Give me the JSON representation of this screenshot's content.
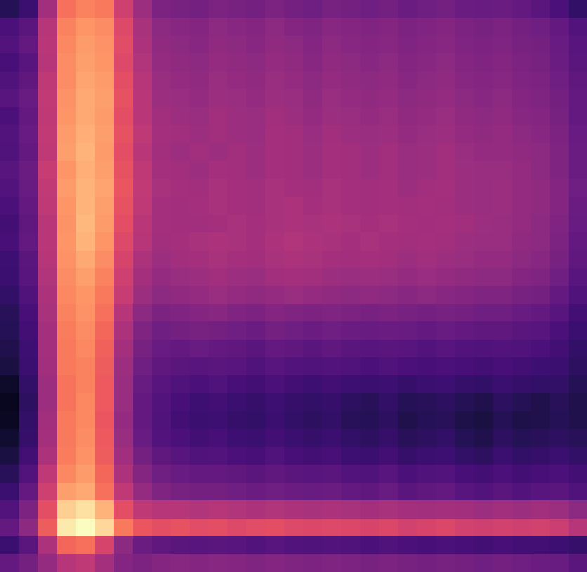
{
  "chart_data": {
    "type": "heatmap",
    "color": "magma",
    "color_range": [
      0,
      100
    ],
    "tick_labels": false,
    "cells": [
      [
        15,
        20,
        45,
        70,
        74,
        72,
        56,
        44,
        36,
        35,
        34,
        36,
        35,
        34,
        36,
        34,
        33,
        35,
        34,
        33,
        34,
        32,
        33,
        34,
        32,
        31,
        32,
        30,
        28,
        24,
        18
      ],
      [
        24,
        28,
        50,
        74,
        78,
        76,
        60,
        47,
        40,
        39,
        38,
        40,
        39,
        38,
        40,
        38,
        37,
        39,
        38,
        37,
        38,
        36,
        37,
        38,
        36,
        35,
        36,
        34,
        33,
        30,
        26
      ],
      [
        26,
        30,
        51,
        75,
        79,
        77,
        61,
        48,
        41,
        40,
        39,
        41,
        40,
        39,
        41,
        40,
        38,
        40,
        39,
        38,
        39,
        37,
        38,
        39,
        37,
        36,
        37,
        35,
        34,
        31,
        27
      ],
      [
        23,
        27,
        50,
        76,
        80,
        78,
        60,
        49,
        42,
        41,
        40,
        42,
        41,
        40,
        42,
        41,
        39,
        41,
        40,
        39,
        40,
        38,
        39,
        40,
        38,
        37,
        38,
        36,
        35,
        32,
        28
      ],
      [
        25,
        29,
        52,
        76,
        81,
        79,
        62,
        50,
        43,
        42,
        41,
        43,
        42,
        41,
        43,
        42,
        40,
        42,
        41,
        40,
        41,
        39,
        40,
        41,
        39,
        38,
        39,
        37,
        36,
        33,
        29
      ],
      [
        27,
        31,
        53,
        77,
        82,
        80,
        63,
        51,
        44,
        43,
        42,
        44,
        43,
        42,
        44,
        43,
        41,
        43,
        42,
        41,
        42,
        40,
        41,
        42,
        40,
        39,
        40,
        38,
        37,
        34,
        30
      ],
      [
        24,
        30,
        52,
        78,
        82,
        79,
        62,
        51,
        45,
        44,
        43,
        45,
        44,
        43,
        45,
        44,
        42,
        44,
        43,
        42,
        43,
        41,
        42,
        43,
        41,
        40,
        41,
        39,
        38,
        35,
        30
      ],
      [
        26,
        31,
        53,
        79,
        83,
        80,
        63,
        52,
        46,
        45,
        44,
        45,
        44,
        43,
        46,
        45,
        43,
        45,
        44,
        43,
        44,
        42,
        43,
        44,
        42,
        41,
        42,
        40,
        39,
        36,
        31
      ],
      [
        25,
        30,
        52,
        80,
        84,
        79,
        62,
        51,
        45,
        44,
        45,
        44,
        45,
        44,
        46,
        45,
        44,
        46,
        45,
        44,
        45,
        43,
        44,
        45,
        43,
        42,
        42,
        41,
        40,
        37,
        32
      ],
      [
        27,
        32,
        54,
        78,
        83,
        80,
        63,
        52,
        46,
        45,
        44,
        46,
        45,
        44,
        46,
        45,
        44,
        46,
        45,
        44,
        45,
        43,
        44,
        45,
        44,
        43,
        43,
        42,
        40,
        37,
        32
      ],
      [
        26,
        31,
        53,
        79,
        84,
        81,
        64,
        53,
        47,
        46,
        45,
        47,
        46,
        45,
        47,
        46,
        45,
        47,
        46,
        45,
        46,
        44,
        45,
        46,
        44,
        43,
        44,
        42,
        41,
        38,
        33
      ],
      [
        24,
        30,
        52,
        78,
        84,
        80,
        63,
        52,
        46,
        45,
        46,
        47,
        46,
        45,
        47,
        48,
        46,
        47,
        46,
        45,
        46,
        45,
        46,
        45,
        44,
        43,
        44,
        42,
        41,
        38,
        32
      ],
      [
        22,
        29,
        51,
        77,
        85,
        79,
        62,
        51,
        46,
        45,
        45,
        46,
        47,
        46,
        47,
        48,
        47,
        48,
        47,
        46,
        47,
        46,
        45,
        46,
        45,
        44,
        43,
        42,
        40,
        37,
        31
      ],
      [
        23,
        30,
        51,
        78,
        84,
        78,
        60,
        50,
        45,
        46,
        47,
        48,
        47,
        46,
        48,
        49,
        48,
        47,
        46,
        47,
        46,
        45,
        46,
        45,
        44,
        43,
        43,
        41,
        40,
        36,
        30
      ],
      [
        21,
        28,
        50,
        77,
        82,
        76,
        58,
        48,
        44,
        45,
        46,
        47,
        46,
        45,
        47,
        48,
        47,
        46,
        45,
        46,
        45,
        44,
        45,
        44,
        43,
        42,
        42,
        40,
        39,
        35,
        29
      ],
      [
        20,
        27,
        49,
        76,
        80,
        74,
        56,
        46,
        42,
        43,
        44,
        45,
        44,
        43,
        45,
        46,
        45,
        44,
        43,
        44,
        43,
        42,
        43,
        42,
        41,
        40,
        40,
        38,
        37,
        33,
        27
      ],
      [
        18,
        25,
        48,
        75,
        78,
        72,
        54,
        44,
        40,
        41,
        42,
        43,
        42,
        41,
        42,
        43,
        42,
        41,
        40,
        41,
        40,
        39,
        40,
        39,
        38,
        37,
        37,
        35,
        34,
        30,
        25
      ],
      [
        16,
        23,
        47,
        74,
        77,
        70,
        50,
        40,
        36,
        37,
        38,
        39,
        37,
        36,
        38,
        37,
        36,
        37,
        36,
        35,
        36,
        35,
        34,
        35,
        34,
        33,
        33,
        31,
        30,
        27,
        22
      ],
      [
        15,
        22,
        46,
        73,
        76,
        68,
        48,
        37,
        33,
        34,
        35,
        34,
        33,
        32,
        34,
        33,
        32,
        33,
        32,
        31,
        32,
        31,
        30,
        31,
        30,
        29,
        29,
        28,
        27,
        24,
        20
      ],
      [
        14,
        21,
        46,
        72,
        75,
        67,
        46,
        35,
        31,
        30,
        31,
        30,
        29,
        28,
        30,
        29,
        28,
        29,
        28,
        27,
        28,
        27,
        26,
        27,
        26,
        25,
        26,
        25,
        24,
        22,
        18
      ],
      [
        12,
        20,
        45,
        72,
        74,
        66,
        44,
        33,
        29,
        28,
        27,
        28,
        27,
        25,
        27,
        26,
        25,
        26,
        25,
        24,
        25,
        24,
        23,
        24,
        23,
        22,
        23,
        22,
        21,
        20,
        17
      ],
      [
        8,
        18,
        44,
        71,
        74,
        65,
        43,
        31,
        27,
        25,
        24,
        25,
        23,
        22,
        24,
        22,
        21,
        22,
        21,
        20,
        21,
        19,
        20,
        21,
        19,
        18,
        20,
        19,
        18,
        18,
        15
      ],
      [
        6,
        17,
        44,
        71,
        75,
        65,
        43,
        30,
        26,
        23,
        21,
        22,
        20,
        19,
        21,
        19,
        18,
        19,
        17,
        16,
        18,
        15,
        16,
        17,
        15,
        14,
        17,
        15,
        14,
        16,
        14
      ],
      [
        7,
        18,
        45,
        72,
        75,
        64,
        42,
        30,
        25,
        22,
        20,
        21,
        19,
        18,
        20,
        18,
        17,
        18,
        16,
        15,
        17,
        14,
        15,
        16,
        13,
        12,
        15,
        13,
        14,
        15,
        14
      ],
      [
        9,
        19,
        46,
        72,
        76,
        65,
        43,
        31,
        26,
        24,
        22,
        23,
        21,
        20,
        22,
        20,
        19,
        20,
        18,
        17,
        19,
        16,
        17,
        18,
        15,
        14,
        17,
        15,
        16,
        17,
        16
      ],
      [
        12,
        22,
        48,
        73,
        77,
        66,
        45,
        34,
        29,
        27,
        25,
        26,
        24,
        23,
        25,
        23,
        22,
        23,
        21,
        20,
        22,
        19,
        20,
        21,
        18,
        17,
        20,
        18,
        19,
        20,
        18
      ],
      [
        16,
        26,
        52,
        75,
        79,
        68,
        48,
        38,
        33,
        31,
        30,
        30,
        29,
        28,
        29,
        28,
        27,
        28,
        26,
        25,
        27,
        24,
        25,
        26,
        23,
        22,
        24,
        22,
        23,
        24,
        22
      ],
      [
        20,
        30,
        56,
        80,
        82,
        70,
        52,
        42,
        37,
        35,
        34,
        34,
        33,
        32,
        33,
        32,
        31,
        32,
        30,
        29,
        31,
        28,
        29,
        30,
        27,
        26,
        28,
        26,
        27,
        28,
        25
      ],
      [
        26,
        36,
        62,
        90,
        94,
        84,
        62,
        52,
        50,
        50,
        49,
        50,
        49,
        48,
        49,
        48,
        47,
        48,
        47,
        46,
        47,
        46,
        45,
        46,
        45,
        44,
        45,
        44,
        45,
        44,
        40
      ],
      [
        30,
        40,
        66,
        96,
        100,
        92,
        72,
        64,
        62,
        63,
        61,
        62,
        60,
        61,
        62,
        60,
        59,
        60,
        59,
        58,
        59,
        57,
        58,
        59,
        57,
        56,
        57,
        56,
        57,
        55,
        50
      ],
      [
        20,
        28,
        48,
        68,
        70,
        58,
        40,
        32,
        29,
        28,
        27,
        28,
        27,
        26,
        27,
        26,
        25,
        26,
        25,
        24,
        25,
        24,
        23,
        24,
        23,
        22,
        23,
        22,
        22,
        21,
        19
      ],
      [
        30,
        34,
        42,
        50,
        52,
        46,
        38,
        36,
        38,
        39,
        38,
        39,
        38,
        37,
        38,
        37,
        36,
        37,
        36,
        35,
        36,
        35,
        34,
        35,
        34,
        33,
        34,
        33,
        32,
        31,
        28
      ]
    ]
  }
}
